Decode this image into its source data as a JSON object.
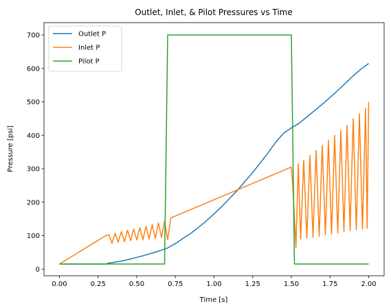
{
  "chart_data": {
    "type": "line",
    "title": "Outlet, Inlet, & Pilot Pressures vs Time",
    "xlabel": "Time [s]",
    "ylabel": "Pressure [psi]",
    "xlim": [
      -0.1,
      2.1
    ],
    "ylim": [
      -20,
      737
    ],
    "xticks": [
      0.0,
      0.25,
      0.5,
      0.75,
      1.0,
      1.25,
      1.5,
      1.75,
      2.0
    ],
    "xtick_labels": [
      "0.00",
      "0.25",
      "0.50",
      "0.75",
      "1.00",
      "1.25",
      "1.50",
      "1.75",
      "2.00"
    ],
    "yticks": [
      0,
      100,
      200,
      300,
      400,
      500,
      600,
      700
    ],
    "ytick_labels": [
      "0",
      "100",
      "200",
      "300",
      "400",
      "500",
      "600",
      "700"
    ],
    "grid": false,
    "legend": "top-left",
    "series": [
      {
        "name": "Outlet P",
        "color": "#1f77b4",
        "points": [
          [
            0.0,
            15
          ],
          [
            0.3,
            15
          ],
          [
            0.32,
            18
          ],
          [
            0.35,
            20
          ],
          [
            0.4,
            24
          ],
          [
            0.45,
            29
          ],
          [
            0.5,
            35
          ],
          [
            0.55,
            41
          ],
          [
            0.6,
            48
          ],
          [
            0.65,
            55
          ],
          [
            0.7,
            63
          ],
          [
            0.75,
            76
          ],
          [
            0.8,
            92
          ],
          [
            0.85,
            107
          ],
          [
            0.9,
            125
          ],
          [
            0.95,
            144
          ],
          [
            1.0,
            165
          ],
          [
            1.05,
            187
          ],
          [
            1.1,
            211
          ],
          [
            1.15,
            235
          ],
          [
            1.2,
            262
          ],
          [
            1.25,
            289
          ],
          [
            1.3,
            318
          ],
          [
            1.35,
            348
          ],
          [
            1.4,
            380
          ],
          [
            1.45,
            406
          ],
          [
            1.5,
            422
          ],
          [
            1.55,
            436
          ],
          [
            1.6,
            455
          ],
          [
            1.65,
            474
          ],
          [
            1.7,
            493
          ],
          [
            1.75,
            513
          ],
          [
            1.8,
            534
          ],
          [
            1.85,
            556
          ],
          [
            1.9,
            578
          ],
          [
            1.95,
            598
          ],
          [
            2.0,
            615
          ]
        ]
      },
      {
        "name": "Inlet P",
        "color": "#ff7f0e",
        "points": [
          [
            0.0,
            15
          ],
          [
            0.3,
            100
          ],
          [
            0.32,
            103
          ],
          [
            0.34,
            77
          ],
          [
            0.36,
            107
          ],
          [
            0.38,
            80
          ],
          [
            0.4,
            112
          ],
          [
            0.42,
            82
          ],
          [
            0.44,
            116
          ],
          [
            0.46,
            85
          ],
          [
            0.48,
            120
          ],
          [
            0.5,
            87
          ],
          [
            0.52,
            124
          ],
          [
            0.54,
            88
          ],
          [
            0.56,
            128
          ],
          [
            0.58,
            90
          ],
          [
            0.6,
            133
          ],
          [
            0.62,
            92
          ],
          [
            0.64,
            138
          ],
          [
            0.66,
            94
          ],
          [
            0.68,
            143
          ],
          [
            0.7,
            88
          ],
          [
            0.72,
            153
          ],
          [
            1.5,
            305
          ],
          [
            1.51,
            240
          ],
          [
            1.53,
            65
          ],
          [
            1.545,
            315
          ],
          [
            1.56,
            90
          ],
          [
            1.58,
            325
          ],
          [
            1.6,
            92
          ],
          [
            1.62,
            340
          ],
          [
            1.64,
            95
          ],
          [
            1.66,
            355
          ],
          [
            1.68,
            98
          ],
          [
            1.7,
            370
          ],
          [
            1.72,
            102
          ],
          [
            1.74,
            385
          ],
          [
            1.76,
            105
          ],
          [
            1.78,
            400
          ],
          [
            1.8,
            108
          ],
          [
            1.82,
            415
          ],
          [
            1.84,
            112
          ],
          [
            1.86,
            430
          ],
          [
            1.88,
            115
          ],
          [
            1.9,
            450
          ],
          [
            1.92,
            118
          ],
          [
            1.94,
            465
          ],
          [
            1.96,
            120
          ],
          [
            1.98,
            480
          ],
          [
            1.99,
            122
          ],
          [
            2.0,
            500
          ]
        ]
      },
      {
        "name": "Pilot P",
        "color": "#2ca02c",
        "points": [
          [
            0.0,
            15
          ],
          [
            0.68,
            15
          ],
          [
            0.7,
            700
          ],
          [
            1.5,
            700
          ],
          [
            1.52,
            15
          ],
          [
            2.0,
            15
          ]
        ]
      }
    ]
  }
}
